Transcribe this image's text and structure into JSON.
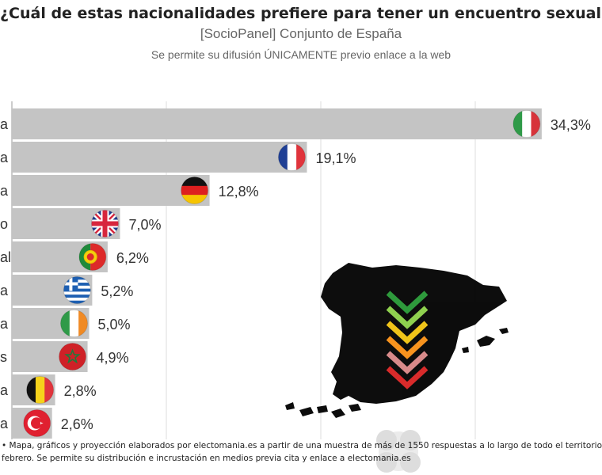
{
  "header": {
    "title": "¿Cuál de estas nacionalidades prefiere para tener un encuentro sexual?",
    "subtitle": "[SocioPanel] Conjunto de España",
    "note": "Se permite su difusión ÚNICAMENTE previo enlace a la web"
  },
  "chart_data": {
    "type": "bar",
    "orientation": "horizontal",
    "categories_visible": [
      "a",
      "a",
      "a",
      "o",
      "al",
      "a",
      "a",
      "s",
      "a",
      "a"
    ],
    "values": [
      34.3,
      19.1,
      12.8,
      7.0,
      6.2,
      5.2,
      5.0,
      4.9,
      2.8,
      2.6
    ],
    "value_labels": [
      "34,3%",
      "19,1%",
      "12,8%",
      "7,0%",
      "6,2%",
      "5,2%",
      "5,0%",
      "4,9%",
      "2,8%",
      "2,6%"
    ],
    "flag_icons": [
      "italy-flag-icon",
      "france-flag-icon",
      "germany-flag-icon",
      "uk-flag-icon",
      "portugal-flag-icon",
      "greece-flag-icon",
      "ireland-flag-icon",
      "morocco-flag-icon",
      "belgium-flag-icon",
      "turkey-flag-icon"
    ],
    "xlim": [
      0,
      40
    ],
    "grid": true,
    "bar_color": "#c4c4c4"
  },
  "footer": {
    "line1": "• Mapa, gráficos y proyección elaborados por electomania.es a partir de una muestra de más de 1550 respuestas a lo largo de todo el territorio nac",
    "line2": "febrero. Se permite su distribución e incrustación en medios previa cita y enlace a electomania.es"
  },
  "watermark": {
    "map_icon": "spain-map-silhouette",
    "arrows_icon": "chevron-arrows-down-icon",
    "arrow_colors": [
      "#2e9a3c",
      "#8fd14f",
      "#f0c419",
      "#f7931e",
      "#d88a8a",
      "#d92b2b"
    ],
    "logo_icon": "electomania-logo"
  }
}
